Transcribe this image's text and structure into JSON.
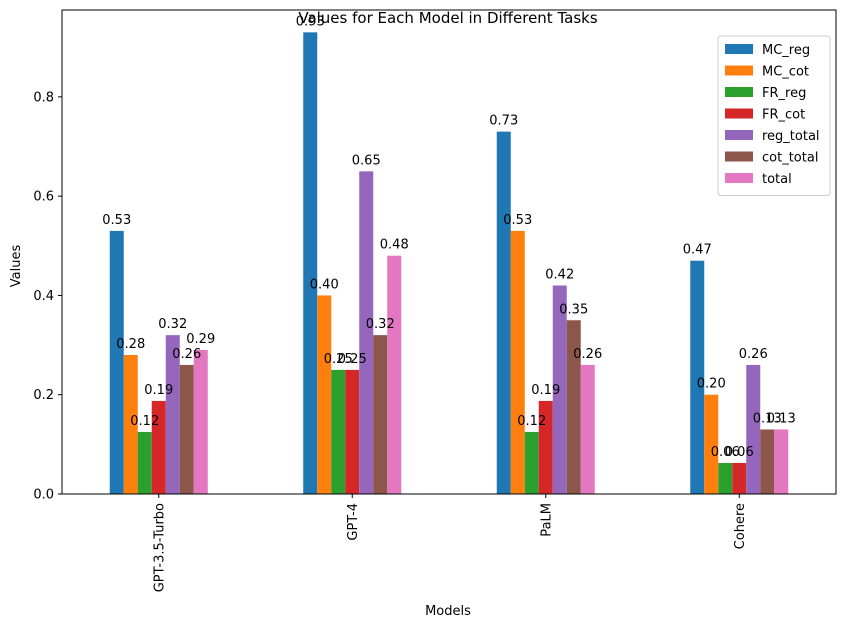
{
  "chart_data": {
    "type": "bar",
    "title": "Values for Each Model in Different Tasks",
    "xlabel": "Models",
    "ylabel": "Values",
    "ylim": [
      0,
      0.975
    ],
    "yticks": [
      0.0,
      0.2,
      0.4,
      0.6,
      0.8
    ],
    "ytick_labels": [
      "0.0",
      "0.2",
      "0.4",
      "0.6",
      "0.8"
    ],
    "categories": [
      "GPT-3.5-Turbo",
      "GPT-4",
      "PaLM",
      "Cohere"
    ],
    "grid": false,
    "legend_position": "top-right",
    "series": [
      {
        "name": "MC_reg",
        "color": "#1f77b4",
        "values": [
          0.53,
          0.93,
          0.73,
          0.47
        ],
        "labels": [
          "0.53",
          "0.93",
          "0.73",
          "0.47"
        ]
      },
      {
        "name": "MC_cot",
        "color": "#ff7f0e",
        "values": [
          0.28,
          0.4,
          0.53,
          0.2
        ],
        "labels": [
          "0.28",
          "0.40",
          "0.53",
          "0.20"
        ]
      },
      {
        "name": "FR_reg",
        "color": "#2ca02c",
        "values": [
          0.125,
          0.25,
          0.125,
          0.0625
        ],
        "labels": [
          "0.12",
          "0.25",
          "0.12",
          "0.06"
        ]
      },
      {
        "name": "FR_cot",
        "color": "#d62728",
        "values": [
          0.1875,
          0.25,
          0.1875,
          0.0625
        ],
        "labels": [
          "0.19",
          "0.25",
          "0.19",
          "0.06"
        ]
      },
      {
        "name": "reg_total",
        "color": "#9467bd",
        "values": [
          0.32,
          0.65,
          0.42,
          0.26
        ],
        "labels": [
          "0.32",
          "0.65",
          "0.42",
          "0.26"
        ]
      },
      {
        "name": "cot_total",
        "color": "#8c564b",
        "values": [
          0.26,
          0.32,
          0.35,
          0.13
        ],
        "labels": [
          "0.26",
          "0.32",
          "0.35",
          "0.13"
        ]
      },
      {
        "name": "total",
        "color": "#e377c2",
        "values": [
          0.29,
          0.48,
          0.26,
          0.13
        ],
        "labels": [
          "0.29",
          "0.48",
          "0.26",
          "0.13"
        ]
      }
    ]
  }
}
